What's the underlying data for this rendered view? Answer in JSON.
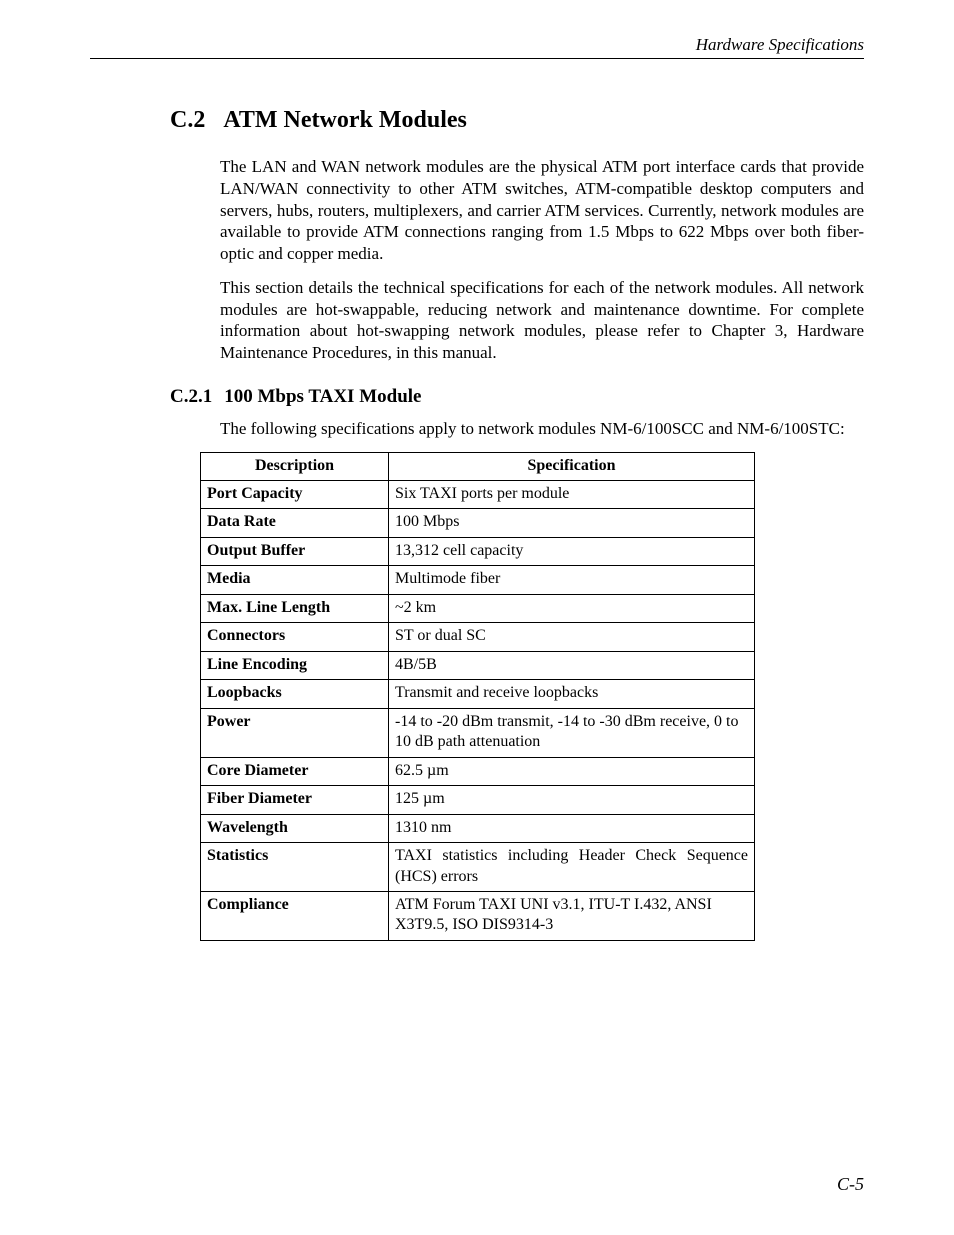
{
  "page": {
    "running_head": "Hardware Specifications",
    "page_number": "C-5"
  },
  "section": {
    "number": "C.2",
    "title": "ATM Network Modules",
    "paragraphs": [
      "The LAN and WAN network modules are the physical ATM port interface cards that provide LAN/WAN connectivity to other ATM switches, ATM-compatible desktop computers and servers, hubs, routers, multiplexers, and carrier ATM services. Currently, network modules are available to provide ATM connections ranging from 1.5 Mbps to 622 Mbps over both fiber-optic and copper media.",
      "This section details the technical specifications for each of the network modules. All network modules are hot-swappable, reducing network and maintenance downtime. For complete information about hot-swapping network modules, please refer to Chapter 3, Hardware Maintenance Procedures, in this manual."
    ]
  },
  "subsection": {
    "number": "C.2.1",
    "title": "100 Mbps TAXI Module",
    "intro": "The following specifications apply to network modules NM-6/100SCC and NM-6/100STC:"
  },
  "table": {
    "headers": {
      "col1": "Description",
      "col2": "Specification"
    },
    "rows": [
      {
        "desc": "Port Capacity",
        "spec": "Six TAXI ports per module"
      },
      {
        "desc": "Data Rate",
        "spec": "100 Mbps"
      },
      {
        "desc": "Output Buffer",
        "spec": "13,312 cell capacity"
      },
      {
        "desc": "Media",
        "spec": "Multimode fiber"
      },
      {
        "desc": "Max. Line Length",
        "spec": "~2 km"
      },
      {
        "desc": "Connectors",
        "spec": "ST or dual SC"
      },
      {
        "desc": "Line Encoding",
        "spec": "4B/5B"
      },
      {
        "desc": "Loopbacks",
        "spec": "Transmit and receive loopbacks"
      },
      {
        "desc": "Power",
        "spec": "-14 to -20 dBm transmit, -14 to -30 dBm receive, 0 to 10 dB path attenuation"
      },
      {
        "desc": "Core Diameter",
        "spec": "62.5 µm"
      },
      {
        "desc": "Fiber Diameter",
        "spec": "125 µm"
      },
      {
        "desc": "Wavelength",
        "spec": "1310 nm"
      },
      {
        "desc": "Statistics",
        "spec": "TAXI statistics including Header Check Sequence (HCS) errors",
        "justify": true
      },
      {
        "desc": "Compliance",
        "spec": "ATM Forum TAXI UNI v3.1, ITU-T I.432, ANSI X3T9.5, ISO DIS9314-3"
      }
    ]
  }
}
